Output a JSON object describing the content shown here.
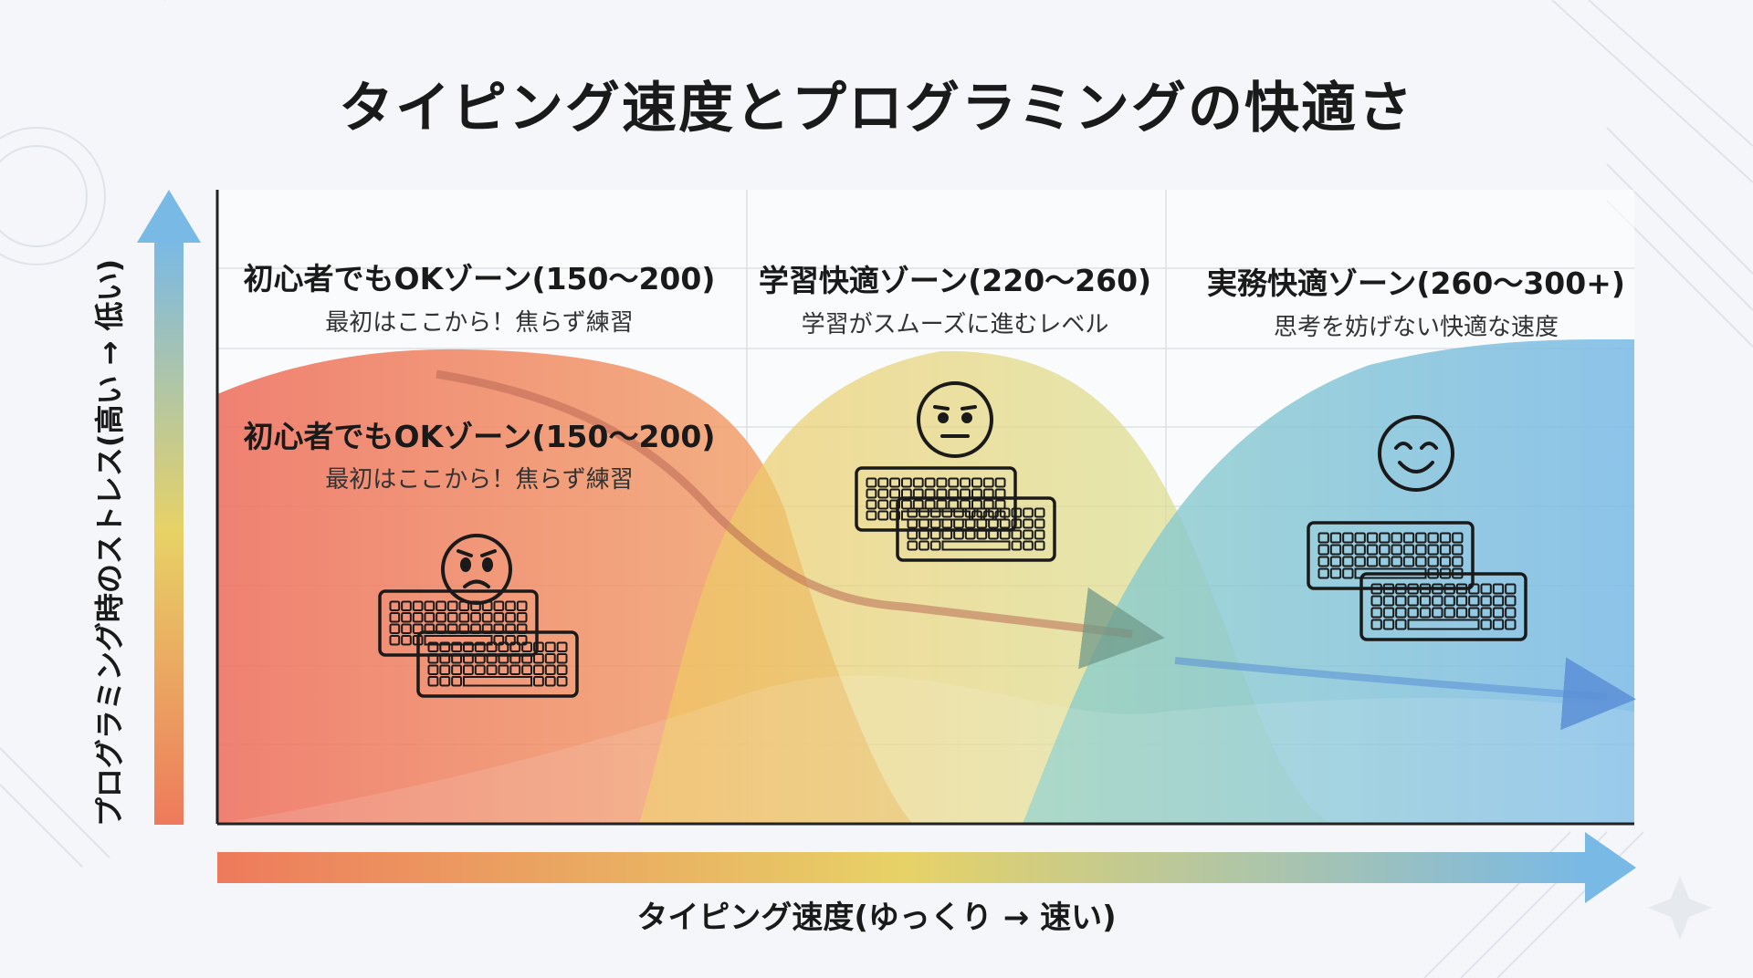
{
  "title": "タイピング速度とプログラミングの快適さ",
  "y_axis_label": "プログラミング時のストレス(高い → 低い)",
  "x_axis_label": "タイピング速度(ゆっくり → 速い)",
  "zones": [
    {
      "title": "初心者でもOKゾーン(150〜200)",
      "subtitle": "最初はここから！焦らず練習",
      "face": "worried-face",
      "color": "#ee7a5c"
    },
    {
      "title": "学習快適ゾーン(220〜260)",
      "subtitle": "学習がスムーズに進むレベル",
      "face": "neutral-face",
      "color": "#e7d266"
    },
    {
      "title": "実務快適ゾーン(260〜300+)",
      "subtitle": "思考を妨げない快適な速度",
      "face": "smiling-face",
      "color": "#79b9e6"
    }
  ],
  "duplicate_callout": {
    "title": "初心者でもOKゾーン(150〜200)",
    "subtitle": "最初はここから！焦らず練習"
  },
  "icons": [
    "keyboard-icon"
  ],
  "colors": {
    "stress_high": "#ee7a5c",
    "mid": "#e7d266",
    "stress_low": "#79b9e6",
    "axis": "#222222"
  }
}
